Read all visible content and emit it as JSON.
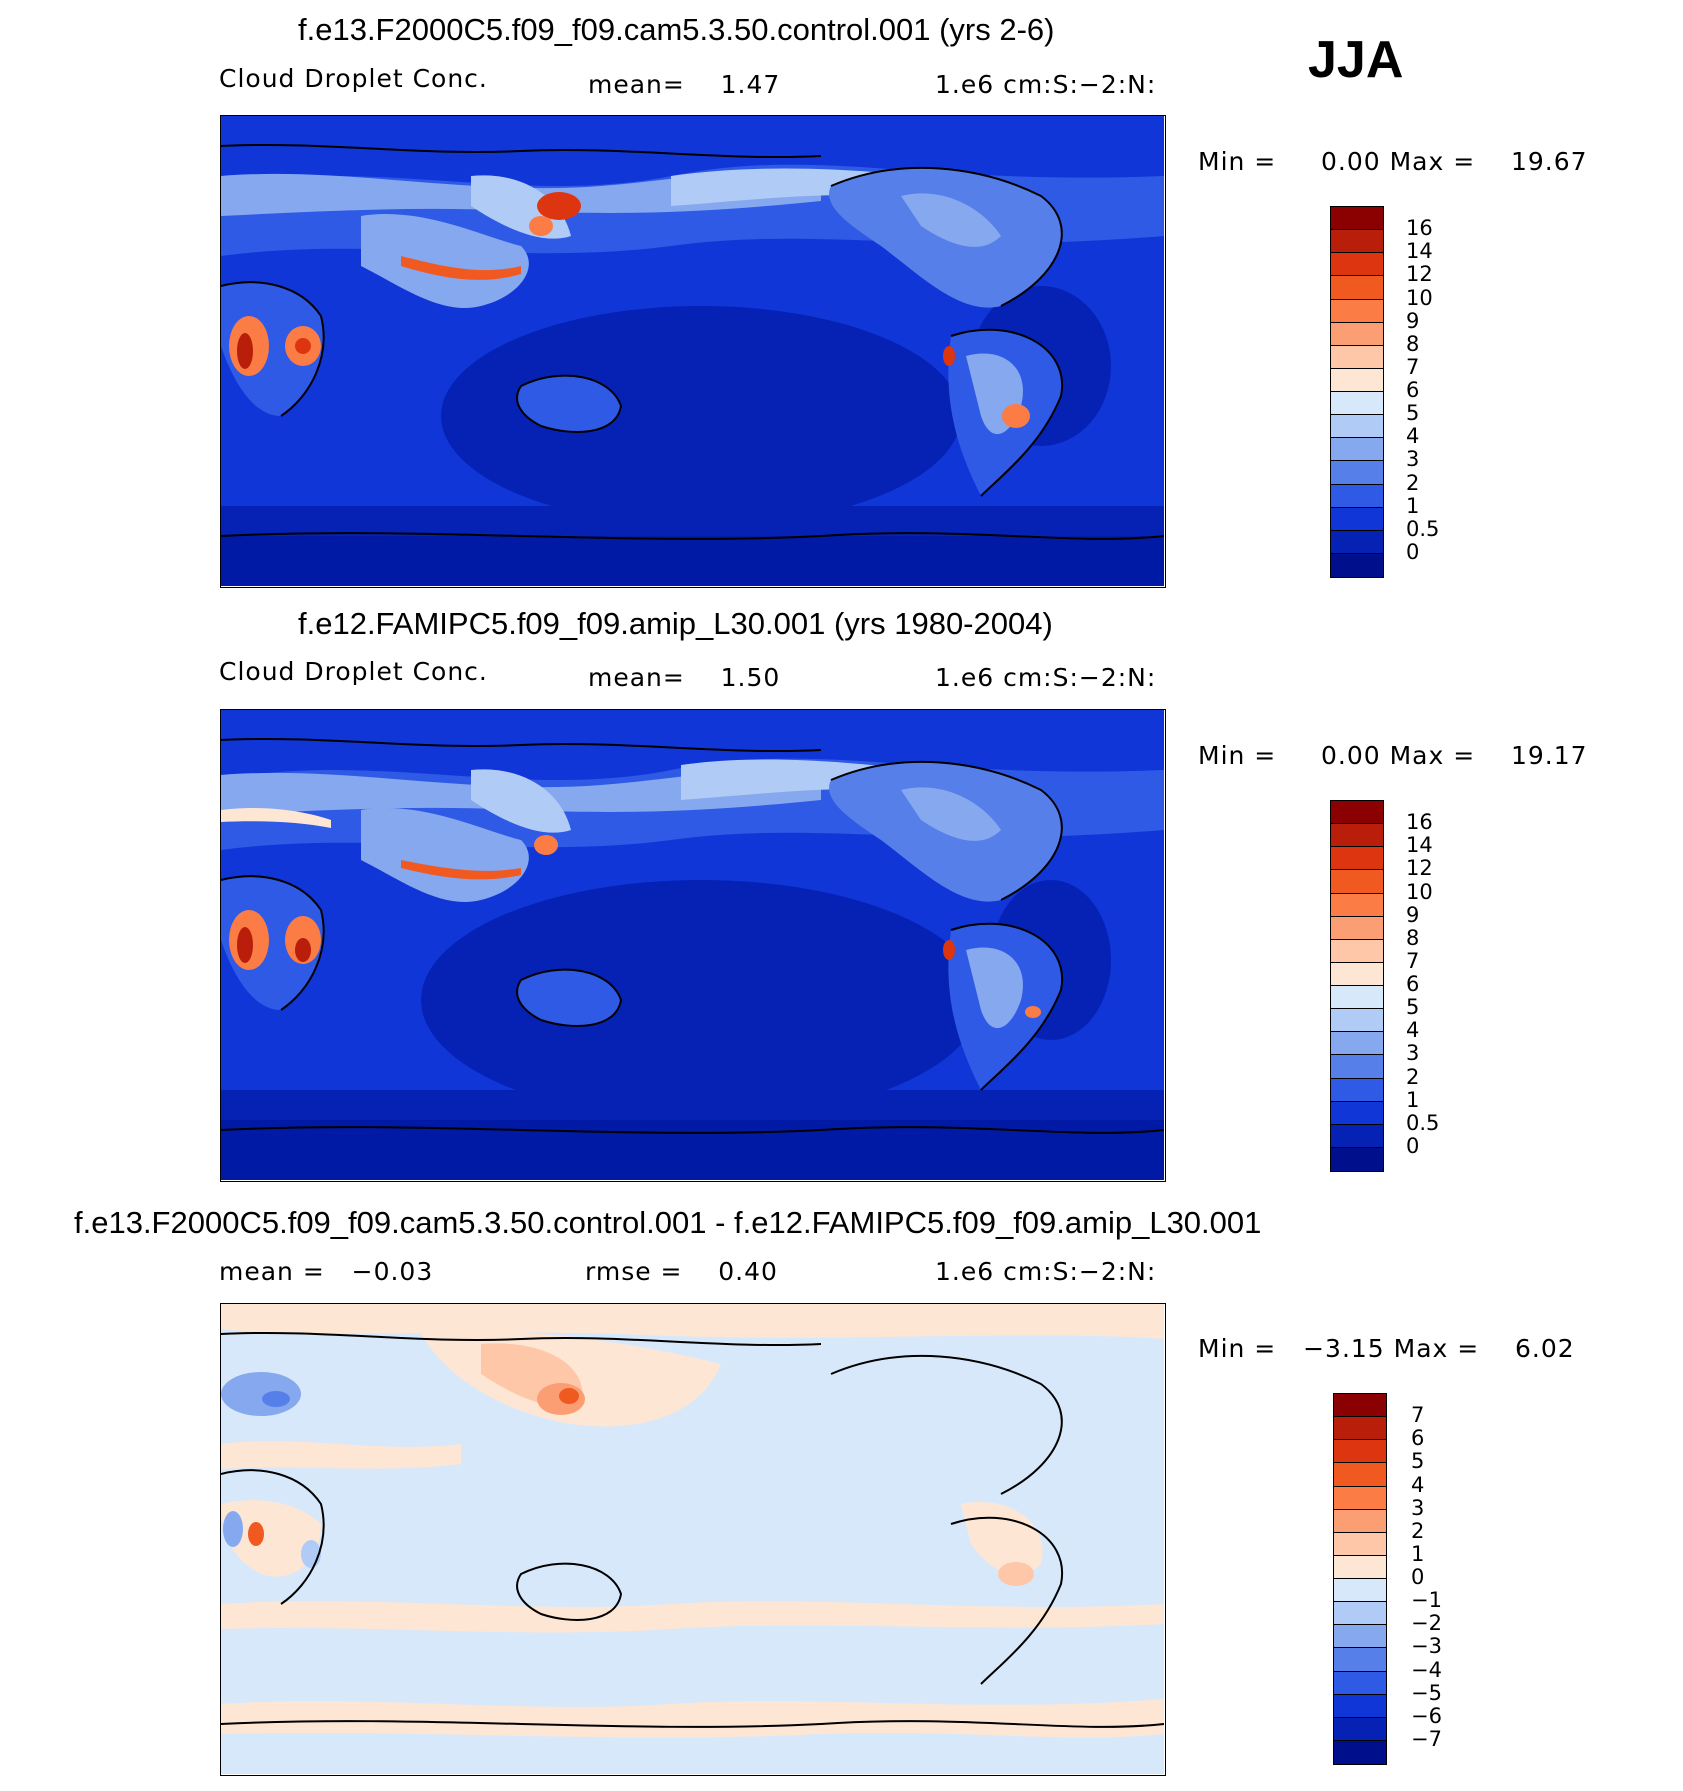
{
  "season": "JJA",
  "panels": [
    {
      "title": "f.e13.F2000C5.f09_f09.cam5.3.50.control.001 (yrs 2-6)",
      "variable": "Cloud Droplet Conc.",
      "mean_text": "mean=    1.47",
      "units": "1.e6 cm:S:−2:N:",
      "minmax": "Min =     0.00 Max =    19.67",
      "levels": [
        "16",
        "14",
        "12",
        "10",
        "9",
        "8",
        "7",
        "6",
        "5",
        "4",
        "3",
        "2",
        "1",
        "0.5",
        "0"
      ],
      "colors": [
        "#8b0000",
        "#b81e0a",
        "#dd3510",
        "#f05a20",
        "#fb7c45",
        "#fc9e73",
        "#fdc7a8",
        "#fde6d4",
        "#d8e8fb",
        "#b0cbf5",
        "#85a8ef",
        "#567fe9",
        "#2e5ae5",
        "#1036d8",
        "#0522b4",
        "#00108c"
      ]
    },
    {
      "title": "f.e12.FAMIPC5.f09_f09.amip_L30.001 (yrs 1980-2004)",
      "variable": "Cloud Droplet Conc.",
      "mean_text": "mean=    1.50",
      "units": "1.e6 cm:S:−2:N:",
      "minmax": "Min =     0.00 Max =    19.17",
      "levels": [
        "16",
        "14",
        "12",
        "10",
        "9",
        "8",
        "7",
        "6",
        "5",
        "4",
        "3",
        "2",
        "1",
        "0.5",
        "0"
      ],
      "colors": [
        "#8b0000",
        "#b81e0a",
        "#dd3510",
        "#f05a20",
        "#fb7c45",
        "#fc9e73",
        "#fdc7a8",
        "#fde6d4",
        "#d8e8fb",
        "#b0cbf5",
        "#85a8ef",
        "#567fe9",
        "#2e5ae5",
        "#1036d8",
        "#0522b4",
        "#00108c"
      ]
    },
    {
      "title": "f.e13.F2000C5.f09_f09.cam5.3.50.control.001 - f.e12.FAMIPC5.f09_f09.amip_L30.001",
      "mean_text": "mean =   −0.03",
      "rmse_text": "rmse =    0.40",
      "units": "1.e6 cm:S:−2:N:",
      "minmax": "Min =   −3.15 Max =    6.02",
      "levels": [
        "7",
        "6",
        "5",
        "4",
        "3",
        "2",
        "1",
        "0",
        "−1",
        "−2",
        "−3",
        "−4",
        "−5",
        "−6",
        "−7"
      ],
      "colors": [
        "#8b0000",
        "#b81e0a",
        "#dd3510",
        "#f05a20",
        "#fb7c45",
        "#fc9e73",
        "#fdc7a8",
        "#fde6d4",
        "#d8e8fb",
        "#b0cbf5",
        "#85a8ef",
        "#567fe9",
        "#2e5ae5",
        "#1036d8",
        "#0522b4",
        "#00108c"
      ]
    }
  ]
}
